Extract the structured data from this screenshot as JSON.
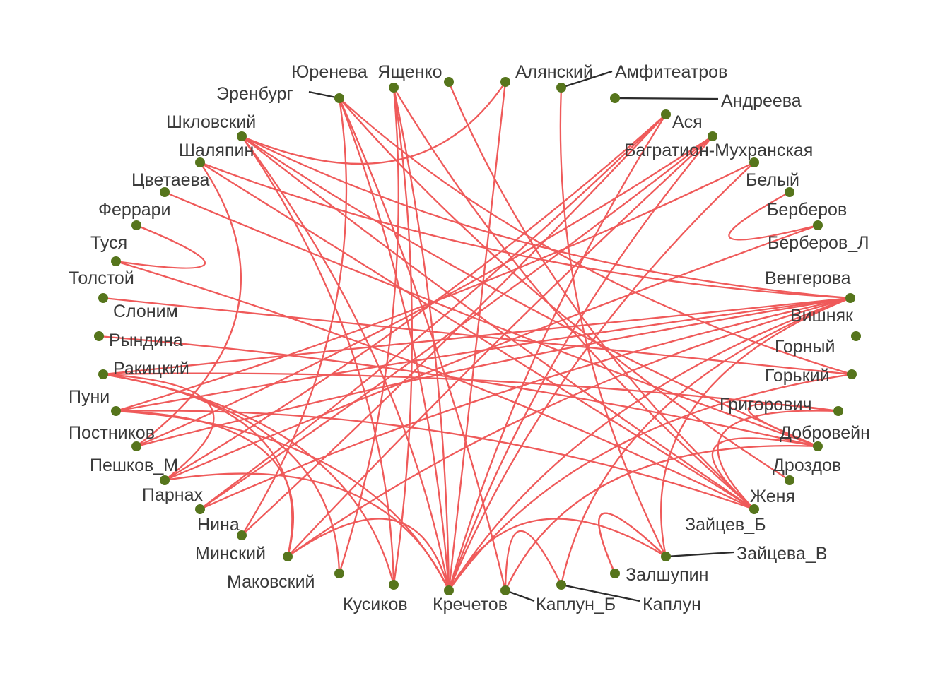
{
  "colors": {
    "edge": "#ef5a5a",
    "node": "#56751c",
    "label": "#3a3a3a",
    "leader": "#2b2b2b",
    "background": "#ffffff"
  },
  "nodes": [
    {
      "id": "yureneva",
      "label": "Юренева"
    },
    {
      "id": "yashchenko",
      "label": "Ященко"
    },
    {
      "id": "alyansky",
      "label": "Алянский"
    },
    {
      "id": "amfiteatrov",
      "label": "Амфитеатров"
    },
    {
      "id": "andreeva",
      "label": "Андреева"
    },
    {
      "id": "asya",
      "label": "Ася"
    },
    {
      "id": "bagration",
      "label": "Багратион-Мухранская"
    },
    {
      "id": "bely",
      "label": "Белый"
    },
    {
      "id": "berberov",
      "label": "Берберов"
    },
    {
      "id": "berberov_l",
      "label": "Берберов_Л"
    },
    {
      "id": "vengerova",
      "label": "Венгерова"
    },
    {
      "id": "vishnyak",
      "label": "Вишняк"
    },
    {
      "id": "gorny",
      "label": "Горный"
    },
    {
      "id": "gorky",
      "label": "Горький"
    },
    {
      "id": "grigorovich",
      "label": "Григорович"
    },
    {
      "id": "dobrovein",
      "label": "Добровейн"
    },
    {
      "id": "drozdov",
      "label": "Дроздов"
    },
    {
      "id": "zhenya",
      "label": "Женя"
    },
    {
      "id": "zaitsev_b",
      "label": "Зайцев_Б"
    },
    {
      "id": "zaitseva_v",
      "label": "Зайцева_В"
    },
    {
      "id": "zalshupin",
      "label": "Залшупин"
    },
    {
      "id": "kaplun",
      "label": "Каплун"
    },
    {
      "id": "kaplun_b",
      "label": "Каплун_Б"
    },
    {
      "id": "krechetov",
      "label": "Кречетов"
    },
    {
      "id": "kusikov",
      "label": "Кусиков"
    },
    {
      "id": "makovsky",
      "label": "Маковский"
    },
    {
      "id": "minsky",
      "label": "Минский"
    },
    {
      "id": "nina",
      "label": "Нина"
    },
    {
      "id": "parnakh",
      "label": "Парнах"
    },
    {
      "id": "peshkov_m",
      "label": "Пешков_М"
    },
    {
      "id": "postnikov",
      "label": "Постников"
    },
    {
      "id": "puni",
      "label": "Пуни"
    },
    {
      "id": "rakitsky",
      "label": "Ракицкий"
    },
    {
      "id": "ryndina",
      "label": "Рындина"
    },
    {
      "id": "slonim",
      "label": "Слоним"
    },
    {
      "id": "tolstoy",
      "label": "Толстой"
    },
    {
      "id": "tusya",
      "label": "Туся"
    },
    {
      "id": "ferrari",
      "label": "Феррари"
    },
    {
      "id": "tsvetaeva",
      "label": "Цветаева"
    },
    {
      "id": "shalyapin",
      "label": "Шаляпин"
    },
    {
      "id": "shklovsky",
      "label": "Шкловский"
    },
    {
      "id": "erenburg",
      "label": "Эренбург"
    }
  ],
  "edges": [
    [
      "yureneva",
      "krechetov"
    ],
    [
      "yureneva",
      "kusikov"
    ],
    [
      "yureneva",
      "zhenya"
    ],
    [
      "yureneva",
      "makovsky"
    ],
    [
      "alyansky",
      "krechetov"
    ],
    [
      "alyansky",
      "shklovsky"
    ],
    [
      "amfiteatrov",
      "zaitsev_b"
    ],
    [
      "asya",
      "parnakh"
    ],
    [
      "asya",
      "nina"
    ],
    [
      "asya",
      "peshkov_m"
    ],
    [
      "asya",
      "krechetov"
    ],
    [
      "bagration",
      "minsky"
    ],
    [
      "bagration",
      "postnikov"
    ],
    [
      "bagration",
      "parnakh"
    ],
    [
      "bagration",
      "krechetov"
    ],
    [
      "bely",
      "puni"
    ],
    [
      "bely",
      "krechetov"
    ],
    [
      "berberov",
      "berberov_l"
    ],
    [
      "berberov_l",
      "peshkov_m"
    ],
    [
      "vengerova",
      "shalyapin"
    ],
    [
      "vengerova",
      "puni"
    ],
    [
      "vengerova",
      "minsky"
    ],
    [
      "vengerova",
      "krechetov"
    ],
    [
      "vengerova",
      "parnakh"
    ],
    [
      "vishnyak",
      "rakitsky"
    ],
    [
      "vishnyak",
      "postnikov"
    ],
    [
      "vishnyak",
      "shklovsky"
    ],
    [
      "vishnyak",
      "zaitsev_b"
    ],
    [
      "vishnyak",
      "kaplun"
    ],
    [
      "gorky",
      "tolstoy"
    ],
    [
      "gorky",
      "erenburg"
    ],
    [
      "gorky",
      "krechetov"
    ],
    [
      "grigorovich",
      "rakitsky"
    ],
    [
      "grigorovich",
      "dobrovein"
    ],
    [
      "grigorovich",
      "zhenya"
    ],
    [
      "dobrovein",
      "tsvetaeva"
    ],
    [
      "dobrovein",
      "ryndina"
    ],
    [
      "dobrovein",
      "kaplun_b"
    ],
    [
      "dobrovein",
      "zhenya"
    ],
    [
      "zhenya",
      "shalyapin"
    ],
    [
      "zhenya",
      "shklovsky"
    ],
    [
      "zhenya",
      "tusya"
    ],
    [
      "zhenya",
      "puni"
    ],
    [
      "zhenya",
      "yashchenko"
    ],
    [
      "zaitsev_b",
      "zalshupin"
    ],
    [
      "zaitseva_v",
      "zalshupin"
    ],
    [
      "zaitseva_v",
      "krechetov"
    ],
    [
      "kaplun_b",
      "erenburg"
    ],
    [
      "kaplun_b",
      "kaplun"
    ],
    [
      "krechetov",
      "shklovsky"
    ],
    [
      "krechetov",
      "erenburg"
    ],
    [
      "krechetov",
      "peshkov_m"
    ],
    [
      "krechetov",
      "puni"
    ],
    [
      "krechetov",
      "minsky"
    ],
    [
      "kusikov",
      "shklovsky"
    ],
    [
      "kusikov",
      "rakitsky"
    ],
    [
      "makovsky",
      "rakitsky"
    ],
    [
      "minsky",
      "rakitsky"
    ],
    [
      "minsky",
      "puni"
    ],
    [
      "nina",
      "erenburg"
    ],
    [
      "peshkov_m",
      "rakitsky"
    ],
    [
      "postnikov",
      "shalyapin"
    ],
    [
      "tusya",
      "ferrari"
    ],
    [
      "shklovsky",
      "dobrovein"
    ],
    [
      "erenburg",
      "drozdov"
    ]
  ]
}
